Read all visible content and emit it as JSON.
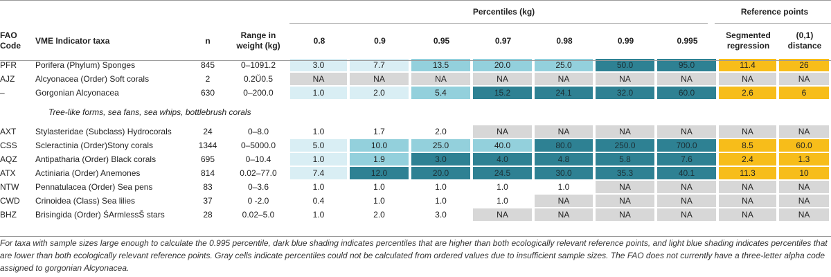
{
  "group_headers": {
    "percentiles": "Percentiles (kg)",
    "reference": "Reference points"
  },
  "columns": {
    "fao_code": "FAO Code",
    "taxa": "VME Indicator taxa",
    "n": "n",
    "range": "Range in weight (kg)",
    "p08": "0.8",
    "p09": "0.9",
    "p095": "0.95",
    "p097": "0.97",
    "p098": "0.98",
    "p099": "0.99",
    "p0995": "0.995",
    "seg": "Segmented regression",
    "dist": "(0,1) distance"
  },
  "rows": [
    {
      "code": "PFR",
      "taxa": "Porifera (Phylum) Sponges",
      "n": "845",
      "range": "0–1091.2",
      "p08": "3.0",
      "p09": "7.7",
      "p095": "13.5",
      "p097": "20.0",
      "p098": "25.0",
      "p099": "50.0",
      "p0995": "95.0",
      "seg": "11.4",
      "dist": "26"
    },
    {
      "code": "AJZ",
      "taxa": "Alcyonacea (Order) Soft corals",
      "n": "2",
      "range": "0.2Ŭ0.5",
      "p08": "NA",
      "p09": "NA",
      "p095": "NA",
      "p097": "NA",
      "p098": "NA",
      "p099": "NA",
      "p0995": "NA",
      "seg": "NA",
      "dist": "NA"
    },
    {
      "code": "–",
      "taxa": "Gorgonian Alcyonacea",
      "n": "630",
      "range": "0–200.0",
      "p08": "1.0",
      "p09": "2.0",
      "p095": "5.4",
      "p097": "15.2",
      "p098": "24.1",
      "p099": "32.0",
      "p0995": "60.0",
      "seg": "2.6",
      "dist": "6"
    },
    {
      "code": "AXT",
      "taxa": "Stylasteridae (Subclass) Hydrocorals",
      "n": "24",
      "range": "0–8.0",
      "p08": "1.0",
      "p09": "1.7",
      "p095": "2.0",
      "p097": "NA",
      "p098": "NA",
      "p099": "NA",
      "p0995": "NA",
      "seg": "NA",
      "dist": "NA"
    },
    {
      "code": "CSS",
      "taxa": "Scleractinia (Order)Stony corals",
      "n": "1344",
      "range": "0–5000.0",
      "p08": "5.0",
      "p09": "10.0",
      "p095": "25.0",
      "p097": "40.0",
      "p098": "80.0",
      "p099": "250.0",
      "p0995": "700.0",
      "seg": "8.5",
      "dist": "60.0"
    },
    {
      "code": "AQZ",
      "taxa": "Antipatharia (Order) Black corals",
      "n": "695",
      "range": "0–10.4",
      "p08": "1.0",
      "p09": "1.9",
      "p095": "3.0",
      "p097": "4.0",
      "p098": "4.8",
      "p099": "5.8",
      "p0995": "7.6",
      "seg": "2.4",
      "dist": "1.3"
    },
    {
      "code": "ATX",
      "taxa": "Actiniaria (Order) Anemones",
      "n": "814",
      "range": "0.02–77.0",
      "p08": "7.4",
      "p09": "12.0",
      "p095": "20.0",
      "p097": "24.5",
      "p098": "30.0",
      "p099": "35.3",
      "p0995": "40.1",
      "seg": "11.3",
      "dist": "10"
    },
    {
      "code": "NTW",
      "taxa": "Pennatulacea (Order) Sea pens",
      "n": "83",
      "range": "0–3.6",
      "p08": "1.0",
      "p09": "1.0",
      "p095": "1.0",
      "p097": "1.0",
      "p098": "1.0",
      "p099": "NA",
      "p0995": "NA",
      "seg": "NA",
      "dist": "NA"
    },
    {
      "code": "CWD",
      "taxa": "Crinoidea (Class) Sea lilies",
      "n": "37",
      "range": "0 -2.0",
      "p08": "0.4",
      "p09": "1.0",
      "p095": "1.0",
      "p097": "1.0",
      "p098": "NA",
      "p099": "NA",
      "p0995": "NA",
      "seg": "NA",
      "dist": "NA"
    },
    {
      "code": "BHZ",
      "taxa": "Brisingida (Order) ŚArmlessŠ stars",
      "n": "28",
      "range": "0.02–5.0",
      "p08": "1.0",
      "p09": "2.0",
      "p095": "3.0",
      "p097": "NA",
      "p098": "NA",
      "p099": "NA",
      "p0995": "NA",
      "seg": "NA",
      "dist": "NA"
    }
  ],
  "gorgonian_note": "Tree-like forms, sea fans, sea whips, bottlebrush corals",
  "footnote": "For taxa with sample sizes large enough to calculate the 0.995 percentile, dark blue shading indicates percentiles that are higher than both ecologically relevant reference points, and light blue shading indicates percentiles that are lower than both ecologically relevant reference points. Gray cells indicate percentiles could not be calculated from ordered values due to insufficient sample sizes. The FAO does not currently have a three-letter alpha code assigned to gorgonian Alcyonacea.",
  "colors": {
    "dark_blue": "#2e8193",
    "mid_blue": "#93d0dc",
    "light_blue": "#d9eef4",
    "gray": "#d7d7d7",
    "gold": "#f7bd1a"
  },
  "shading": {
    "PFR": {
      "p08": "light_blue",
      "p09": "light_blue",
      "p095": "mid_blue",
      "p097": "mid_blue",
      "p098": "mid_blue",
      "p099": "dark_blue",
      "p0995": "dark_blue",
      "seg": "gold",
      "dist": "gold"
    },
    "AJZ": {
      "p08": "gray",
      "p09": "gray",
      "p095": "gray",
      "p097": "gray",
      "p098": "gray",
      "p099": "gray",
      "p0995": "gray",
      "seg": "gray",
      "dist": "gray"
    },
    "–": {
      "p08": "light_blue",
      "p09": "light_blue",
      "p095": "mid_blue",
      "p097": "dark_blue",
      "p098": "dark_blue",
      "p099": "dark_blue",
      "p0995": "dark_blue",
      "seg": "gold",
      "dist": "gold"
    },
    "AXT": {
      "p097": "gray",
      "p098": "gray",
      "p099": "gray",
      "p0995": "gray",
      "seg": "gray",
      "dist": "gray"
    },
    "CSS": {
      "p08": "light_blue",
      "p09": "mid_blue",
      "p095": "mid_blue",
      "p097": "mid_blue",
      "p098": "dark_blue",
      "p099": "dark_blue",
      "p0995": "dark_blue",
      "seg": "gold",
      "dist": "gold"
    },
    "AQZ": {
      "p08": "light_blue",
      "p09": "mid_blue",
      "p095": "dark_blue",
      "p097": "dark_blue",
      "p098": "dark_blue",
      "p099": "dark_blue",
      "p0995": "dark_blue",
      "seg": "gold",
      "dist": "gold"
    },
    "ATX": {
      "p08": "light_blue",
      "p09": "dark_blue",
      "p095": "dark_blue",
      "p097": "dark_blue",
      "p098": "dark_blue",
      "p099": "dark_blue",
      "p0995": "dark_blue",
      "seg": "gold",
      "dist": "gold"
    },
    "NTW": {
      "p099": "gray",
      "p0995": "gray",
      "seg": "gray",
      "dist": "gray"
    },
    "CWD": {
      "p098": "gray",
      "p099": "gray",
      "p0995": "gray",
      "seg": "gray",
      "dist": "gray"
    },
    "BHZ": {
      "p097": "gray",
      "p098": "gray",
      "p099": "gray",
      "p0995": "gray",
      "seg": "gray",
      "dist": "gray"
    }
  }
}
